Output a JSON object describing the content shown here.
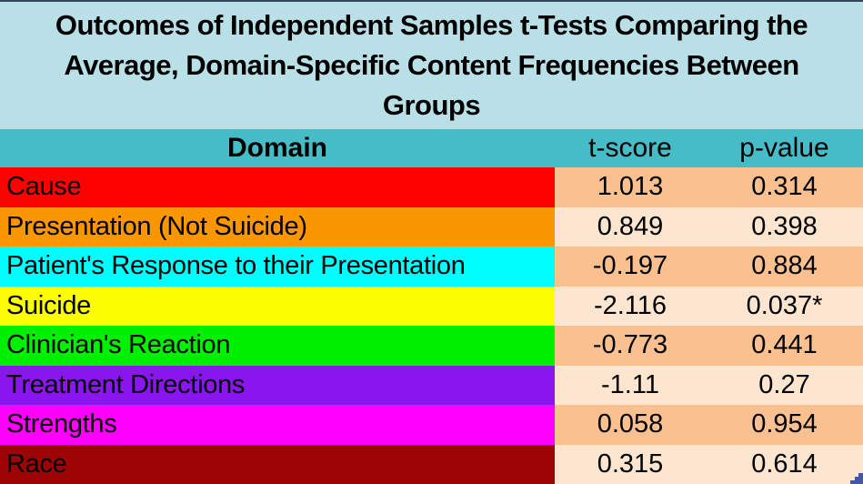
{
  "figure": {
    "title_lines": [
      "Outcomes of Independent Samples t-Tests Comparing the",
      "Average, Domain-Specific Content Frequencies Between",
      "Groups"
    ]
  },
  "table": {
    "columns": [
      "Domain",
      "t-score",
      "p-value"
    ],
    "rows": [
      {
        "domain": "Cause",
        "t_score": "1.013",
        "p_value": "0.314",
        "color": "#fe0200"
      },
      {
        "domain": "Presentation (Not Suicide)",
        "t_score": "0.849",
        "p_value": "0.398",
        "color": "#f99600"
      },
      {
        "domain": "Patient's Response to their Presentation",
        "t_score": "-0.197",
        "p_value": "0.884",
        "color": "#00feff"
      },
      {
        "domain": "Suicide",
        "t_score": "-2.116",
        "p_value": "0.037*",
        "color": "#fdfe00"
      },
      {
        "domain": "Clinician's Reaction",
        "t_score": "-0.773",
        "p_value": "0.441",
        "color": "#00f001"
      },
      {
        "domain": "Treatment Directions",
        "t_score": "-1.11",
        "p_value": "0.27",
        "color": "#8a16ee"
      },
      {
        "domain": "Strengths",
        "t_score": "0.058",
        "p_value": "0.954",
        "color": "#fe00fe"
      },
      {
        "domain": "Race",
        "t_score": "0.315",
        "p_value": "0.614",
        "color": "#9d0404"
      }
    ]
  },
  "colors": {
    "title_bg": "#b9dfe7",
    "header_bg": "#46bcc6",
    "value_bg_odd": "#fac090",
    "value_bg_even": "#fde5cf",
    "top_border": "#33475c",
    "corner_handle": "#4157a5",
    "text": "#000000"
  },
  "chart_data": {
    "type": "table",
    "title": "Outcomes of Independent Samples t-Tests Comparing the Average, Domain-Specific Content Frequencies Between Groups",
    "columns": [
      "Domain",
      "t-score",
      "p-value"
    ],
    "rows": [
      [
        "Cause",
        1.013,
        "0.314"
      ],
      [
        "Presentation (Not Suicide)",
        0.849,
        "0.398"
      ],
      [
        "Patient's Response to their Presentation",
        -0.197,
        "0.884"
      ],
      [
        "Suicide",
        -2.116,
        "0.037*"
      ],
      [
        "Clinician's Reaction",
        -0.773,
        "0.441"
      ],
      [
        "Treatment Directions",
        -1.11,
        "0.27"
      ],
      [
        "Strengths",
        0.058,
        "0.954"
      ],
      [
        "Race",
        0.315,
        "0.614"
      ]
    ],
    "row_colors": [
      "#fe0200",
      "#f99600",
      "#00feff",
      "#fdfe00",
      "#00f001",
      "#8a16ee",
      "#fe00fe",
      "#9d0404"
    ],
    "layout": {
      "header_background": "#46bcc6",
      "value_column_backgrounds_alternating": [
        "#fac090",
        "#fde5cf"
      ],
      "title_background": "#b9dfe7"
    }
  }
}
